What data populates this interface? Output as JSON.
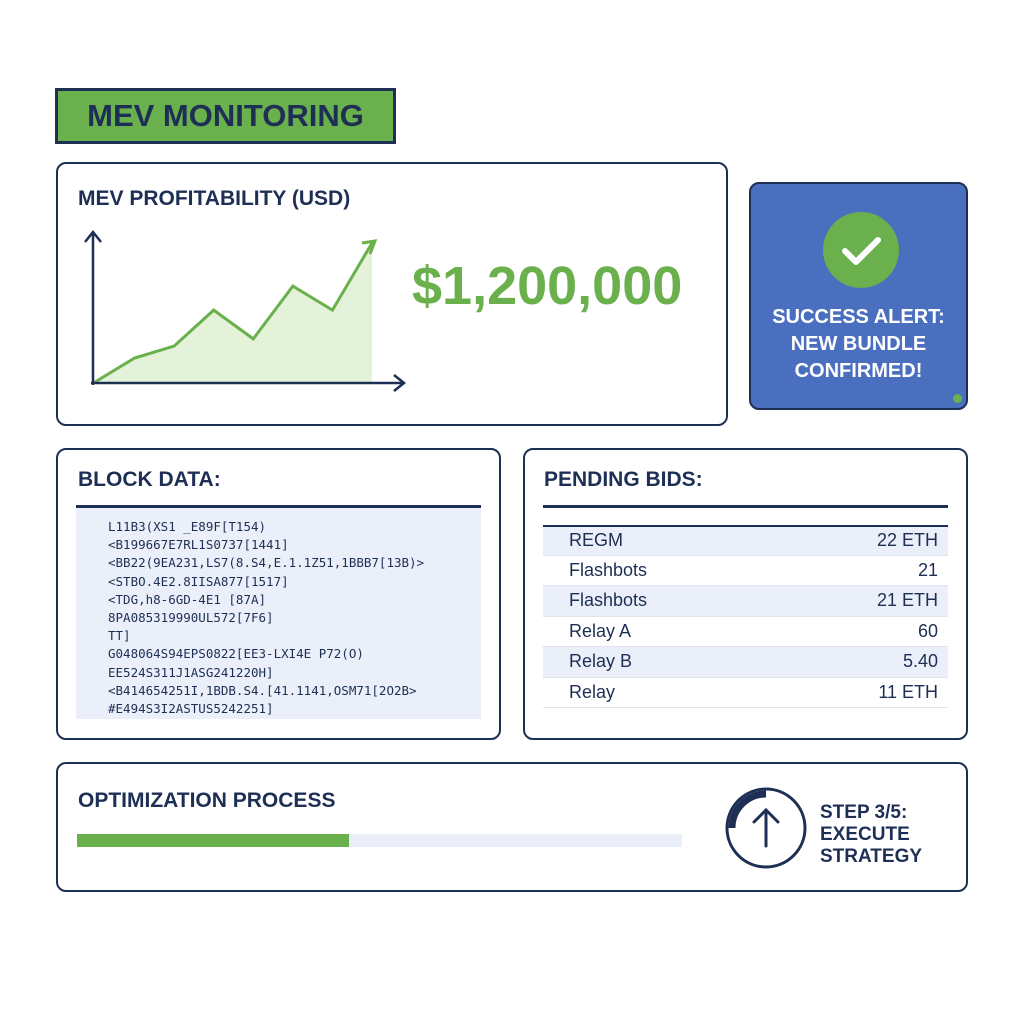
{
  "header": {
    "title": "MEV MONITORING"
  },
  "profit": {
    "title": "MEV PROFITABILITY (USD)",
    "value": "$1,200,000",
    "chart_data": {
      "type": "area",
      "values": [
        0,
        1,
        1.5,
        3,
        1.8,
        4,
        3,
        5.8
      ]
    }
  },
  "alert": {
    "icon": "check-icon",
    "text_lines": [
      "SUCCESS ALERT:",
      "NEW BUNDLE",
      "CONFIRMED!"
    ]
  },
  "block": {
    "title": "BLOCK DATA:",
    "lines": [
      "L11B3(XS1 _E89F[T154)",
      "<B199667E7RL1S0737[1441]",
      "<BB22(9EA231,LS7(8.S4,E.1.1Z51,1BBB7[13B)>",
      "<STBO.4E2.8IISA877[1517]",
      "<TDG,h8-6GD-4E1 [87A]",
      "8PA085319990UL572[7F6]",
      "TT]",
      "G048064S94EPS0822[EE3-LXI4E P72(O)",
      "EE524S311J1ASG241220H]",
      "<B414654251I,1BDB.S4.[41.1141,OSM71[2O2B>",
      "#E494S3I2ASTUS5242251]"
    ]
  },
  "bids": {
    "title": "PENDING BIDS:",
    "rows": [
      {
        "name": "REGM",
        "value": "22 ETH"
      },
      {
        "name": "Flashbots",
        "value": "21"
      },
      {
        "name": "Flashbots",
        "value": "21 ETH"
      },
      {
        "name": "Relay A",
        "value": "60"
      },
      {
        "name": "Relay B",
        "value": "5.40"
      },
      {
        "name": "Relay",
        "value": "11 ETH"
      }
    ]
  },
  "optimization": {
    "title": "OPTIMIZATION PROCESS",
    "progress_percent": 45,
    "step_lines": [
      "STEP 3/5:",
      "EXECUTE",
      "STRATEGY"
    ],
    "icon": "arrow-up-icon"
  },
  "colors": {
    "accent": "#6ab04c",
    "navy": "#1e2f55",
    "alert_blue": "#4a6fbf"
  }
}
